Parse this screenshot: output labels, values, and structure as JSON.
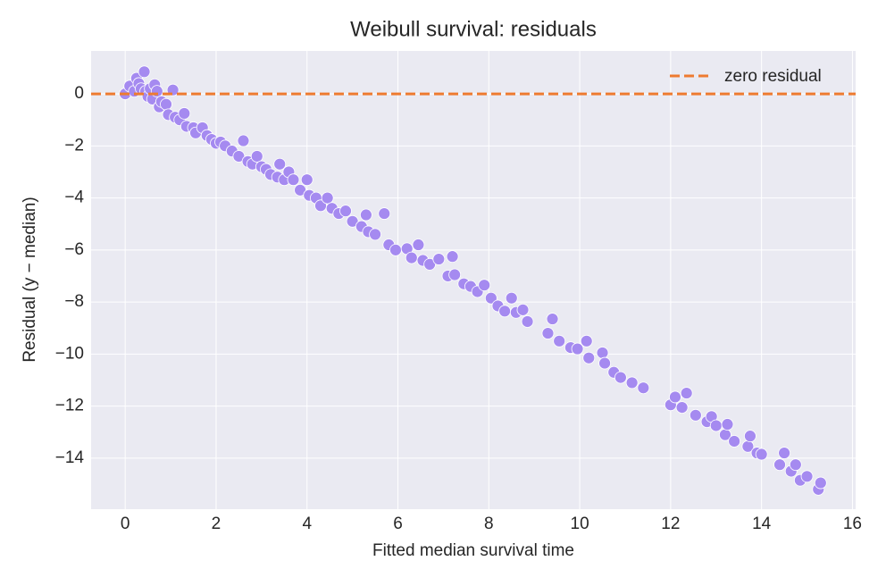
{
  "chart_data": {
    "type": "scatter",
    "title": "Weibull survival: residuals",
    "xlabel": "Fitted median survival time",
    "ylabel": "Residual (y − median)",
    "xlim": [
      -0.75,
      16.07
    ],
    "ylim": [
      -15.96,
      1.65
    ],
    "xticks": [
      0,
      2,
      4,
      6,
      8,
      10,
      12,
      14,
      16
    ],
    "yticks": [
      0,
      {
        "value": -2,
        "label": "−2"
      },
      {
        "value": -4,
        "label": "−4"
      },
      {
        "value": -6,
        "label": "−6"
      },
      {
        "value": -8,
        "label": "−8"
      },
      {
        "value": -10,
        "label": "−10"
      },
      {
        "value": -12,
        "label": "−12"
      },
      {
        "value": -14,
        "label": "−14"
      }
    ],
    "grid": true,
    "legend": "upper right",
    "hline": {
      "y": 0,
      "name": "zero residual",
      "color": "#ee7b30"
    },
    "series": [
      {
        "color": "#a58af0",
        "x": [
          0,
          0.1,
          0.2,
          0.25,
          0.3,
          0.35,
          0.42,
          0.45,
          0.5,
          0.55,
          0.6,
          0.65,
          0.7,
          0.75,
          0.8,
          0.9,
          0.95,
          1.05,
          1.1,
          1.2,
          1.3,
          1.35,
          1.5,
          1.55,
          1.7,
          1.8,
          1.9,
          2.0,
          2.1,
          2.2,
          2.35,
          2.5,
          2.6,
          2.7,
          2.8,
          2.9,
          3.0,
          3.1,
          3.2,
          3.35,
          3.4,
          3.5,
          3.6,
          3.7,
          3.85,
          4.0,
          4.05,
          4.2,
          4.3,
          4.45,
          4.55,
          4.7,
          4.85,
          5.0,
          5.2,
          5.3,
          5.35,
          5.5,
          5.7,
          5.8,
          5.95,
          6.2,
          6.3,
          6.45,
          6.55,
          6.7,
          6.9,
          7.1,
          7.2,
          7.25,
          7.45,
          7.6,
          7.75,
          7.9,
          8.05,
          8.2,
          8.35,
          8.5,
          8.6,
          8.75,
          8.85,
          9.3,
          9.4,
          9.55,
          9.8,
          9.95,
          10.15,
          10.2,
          10.5,
          10.55,
          10.75,
          10.9,
          11.15,
          11.4,
          12.0,
          12.1,
          12.25,
          12.35,
          12.55,
          12.8,
          12.9,
          13.0,
          13.2,
          13.25,
          13.4,
          13.7,
          13.75,
          13.9,
          14.0,
          14.4,
          14.5,
          14.65,
          14.75,
          14.85,
          15.0,
          15.25,
          15.3
        ],
        "values": [
          0,
          0.3,
          0.1,
          0.6,
          0.4,
          0.2,
          0.85,
          0.1,
          -0.1,
          0.2,
          -0.2,
          0.35,
          0.1,
          -0.5,
          -0.3,
          -0.4,
          -0.8,
          0.15,
          -0.9,
          -1.0,
          -0.75,
          -1.25,
          -1.3,
          -1.5,
          -1.3,
          -1.6,
          -1.75,
          -1.9,
          -1.85,
          -2.0,
          -2.2,
          -2.4,
          -1.8,
          -2.6,
          -2.7,
          -2.4,
          -2.8,
          -2.9,
          -3.1,
          -3.2,
          -2.7,
          -3.3,
          -3.0,
          -3.3,
          -3.7,
          -3.3,
          -3.9,
          -4.0,
          -4.3,
          -4.0,
          -4.4,
          -4.6,
          -4.5,
          -4.9,
          -5.1,
          -4.65,
          -5.3,
          -5.4,
          -4.6,
          -5.8,
          -6.0,
          -5.95,
          -6.3,
          -5.8,
          -6.4,
          -6.55,
          -6.35,
          -7.0,
          -6.25,
          -6.95,
          -7.3,
          -7.4,
          -7.6,
          -7.35,
          -7.85,
          -8.15,
          -8.35,
          -7.85,
          -8.4,
          -8.3,
          -8.75,
          -9.2,
          -8.65,
          -9.5,
          -9.75,
          -9.8,
          -9.5,
          -10.15,
          -9.95,
          -10.35,
          -10.7,
          -10.9,
          -11.1,
          -11.3,
          -11.95,
          -11.65,
          -12.05,
          -11.5,
          -12.35,
          -12.6,
          -12.4,
          -12.75,
          -13.1,
          -12.7,
          -13.35,
          -13.55,
          -13.15,
          -13.8,
          -13.85,
          -14.25,
          -13.8,
          -14.5,
          -14.25,
          -14.85,
          -14.7,
          -15.2,
          -14.95
        ]
      }
    ]
  }
}
